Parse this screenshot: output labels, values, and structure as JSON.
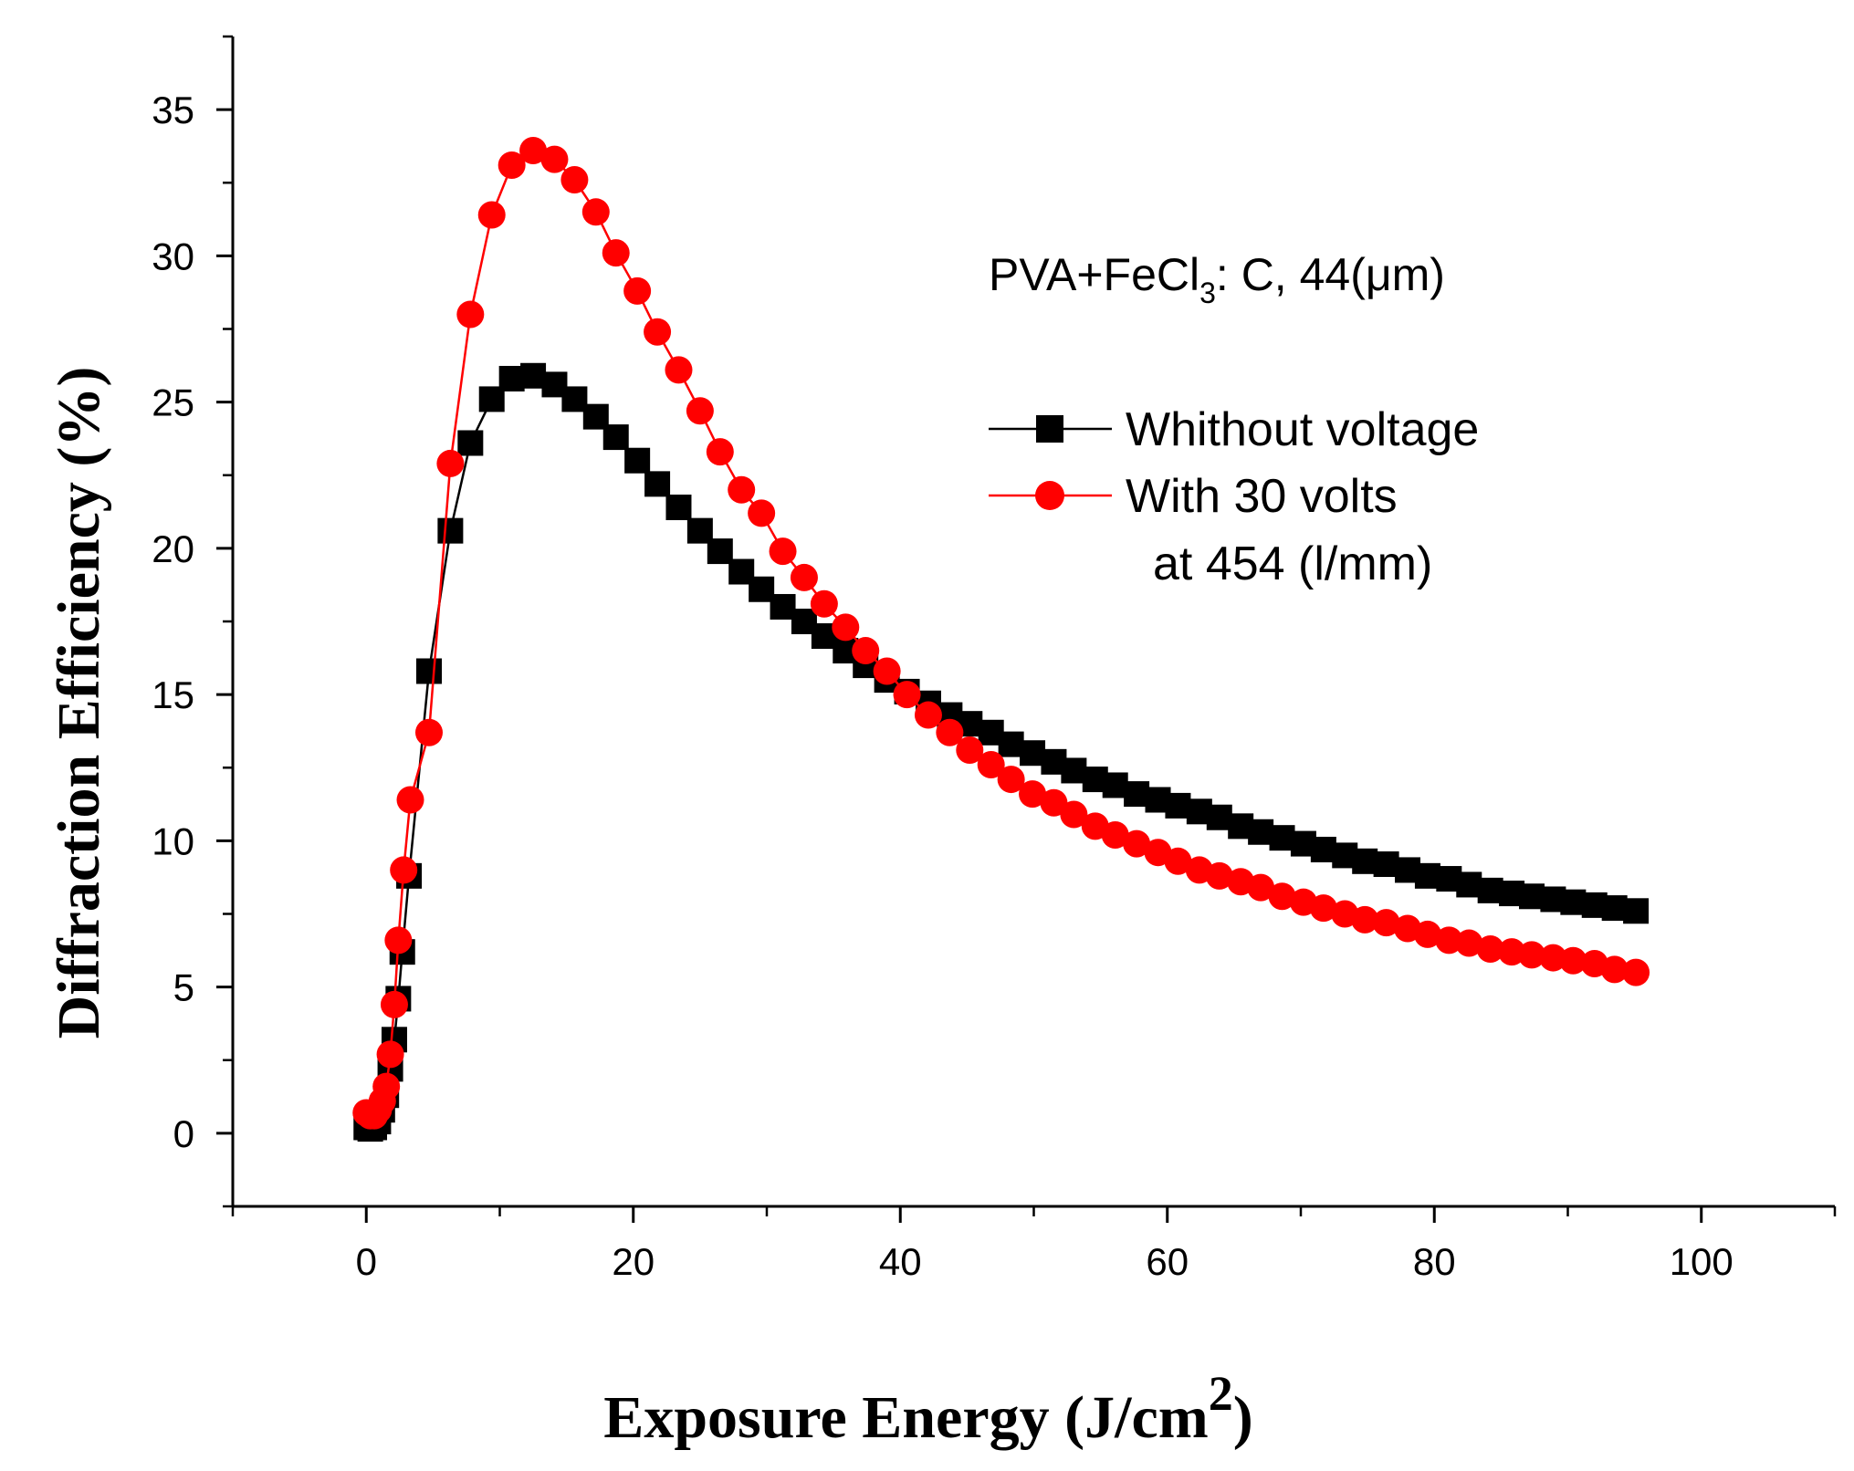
{
  "chart_data": {
    "type": "line",
    "title": "",
    "xlabel": "Exposure Energy (J/cm",
    "xlabel_superscript": "2",
    "xlabel_suffix": ")",
    "ylabel": "Diffraction Efficiency (%)",
    "xlim": [
      -10,
      110
    ],
    "ylim": [
      -2.5,
      37.5
    ],
    "xticks": [
      0,
      20,
      40,
      60,
      80,
      100
    ],
    "yticks": [
      0,
      5,
      10,
      15,
      20,
      25,
      30,
      35
    ],
    "grid": false,
    "legend_position": "right",
    "annotation": {
      "prefix": "PVA+FeCl",
      "subscript": "3",
      "suffix": ": C, 44(μm)"
    },
    "legend_extra": "at 454 (l/mm)",
    "series": [
      {
        "name": "Whithout voltage",
        "color": "#000000",
        "marker": "square",
        "x": [
          0,
          0.3,
          0.6,
          0.9,
          1.2,
          1.5,
          1.8,
          2.1,
          2.4,
          2.7,
          3.2,
          4.7,
          6.3,
          7.8,
          9.4,
          10.9,
          12.5,
          14.1,
          15.6,
          17.2,
          18.7,
          20.3,
          21.8,
          23.4,
          25.0,
          26.5,
          28.1,
          29.6,
          31.2,
          32.8,
          34.3,
          35.9,
          37.4,
          39.0,
          40.5,
          42.1,
          43.7,
          45.2,
          46.8,
          48.3,
          49.9,
          51.5,
          53.0,
          54.6,
          56.1,
          57.7,
          59.3,
          60.8,
          62.4,
          63.9,
          65.5,
          67.0,
          68.6,
          70.2,
          71.7,
          73.3,
          74.8,
          76.4,
          78.0,
          79.5,
          81.1,
          82.6,
          84.2,
          85.8,
          87.3,
          88.9,
          90.4,
          92.0,
          93.5,
          95.1
        ],
        "values": [
          0.2,
          0.15,
          0.2,
          0.4,
          0.8,
          1.3,
          2.2,
          3.2,
          4.6,
          6.2,
          8.8,
          15.8,
          20.6,
          23.6,
          25.1,
          25.8,
          25.9,
          25.6,
          25.1,
          24.5,
          23.8,
          23.0,
          22.2,
          21.4,
          20.6,
          19.9,
          19.2,
          18.6,
          18.0,
          17.5,
          17.0,
          16.5,
          16.0,
          15.5,
          15.1,
          14.7,
          14.3,
          14.0,
          13.7,
          13.3,
          13.0,
          12.7,
          12.4,
          12.1,
          11.9,
          11.6,
          11.4,
          11.2,
          11.0,
          10.8,
          10.5,
          10.3,
          10.1,
          9.9,
          9.7,
          9.5,
          9.3,
          9.2,
          9.0,
          8.8,
          8.7,
          8.5,
          8.3,
          8.2,
          8.1,
          8.0,
          7.9,
          7.8,
          7.7,
          7.6
        ]
      },
      {
        "name": "With 30 volts",
        "color": "#ff0000",
        "marker": "circle",
        "x": [
          0,
          0.3,
          0.6,
          0.9,
          1.2,
          1.5,
          1.8,
          2.1,
          2.4,
          2.8,
          3.3,
          4.7,
          6.3,
          7.8,
          9.4,
          10.9,
          12.5,
          14.1,
          15.6,
          17.2,
          18.7,
          20.3,
          21.8,
          23.4,
          25.0,
          26.5,
          28.1,
          29.6,
          31.2,
          32.8,
          34.3,
          35.9,
          37.4,
          39.0,
          40.5,
          42.1,
          43.7,
          45.2,
          46.8,
          48.3,
          49.9,
          51.5,
          53.0,
          54.6,
          56.1,
          57.7,
          59.3,
          60.8,
          62.4,
          63.9,
          65.5,
          67.0,
          68.6,
          70.2,
          71.7,
          73.3,
          74.8,
          76.4,
          78.0,
          79.5,
          81.1,
          82.6,
          84.2,
          85.8,
          87.3,
          88.9,
          90.4,
          92.0,
          93.5,
          95.1
        ],
        "values": [
          0.7,
          0.6,
          0.6,
          0.8,
          1.1,
          1.6,
          2.7,
          4.4,
          6.6,
          9.0,
          11.4,
          13.7,
          22.9,
          28.0,
          31.4,
          33.1,
          33.6,
          33.3,
          32.6,
          31.5,
          30.1,
          28.8,
          27.4,
          26.1,
          24.7,
          23.3,
          22.0,
          21.2,
          19.9,
          19.0,
          18.1,
          17.3,
          16.5,
          15.8,
          15.0,
          14.3,
          13.7,
          13.1,
          12.6,
          12.1,
          11.6,
          11.3,
          10.9,
          10.5,
          10.2,
          9.9,
          9.6,
          9.3,
          9.0,
          8.8,
          8.6,
          8.4,
          8.1,
          7.9,
          7.7,
          7.5,
          7.3,
          7.2,
          7.0,
          6.8,
          6.6,
          6.5,
          6.3,
          6.2,
          6.1,
          6.0,
          5.9,
          5.8,
          5.6,
          5.5
        ]
      }
    ]
  }
}
